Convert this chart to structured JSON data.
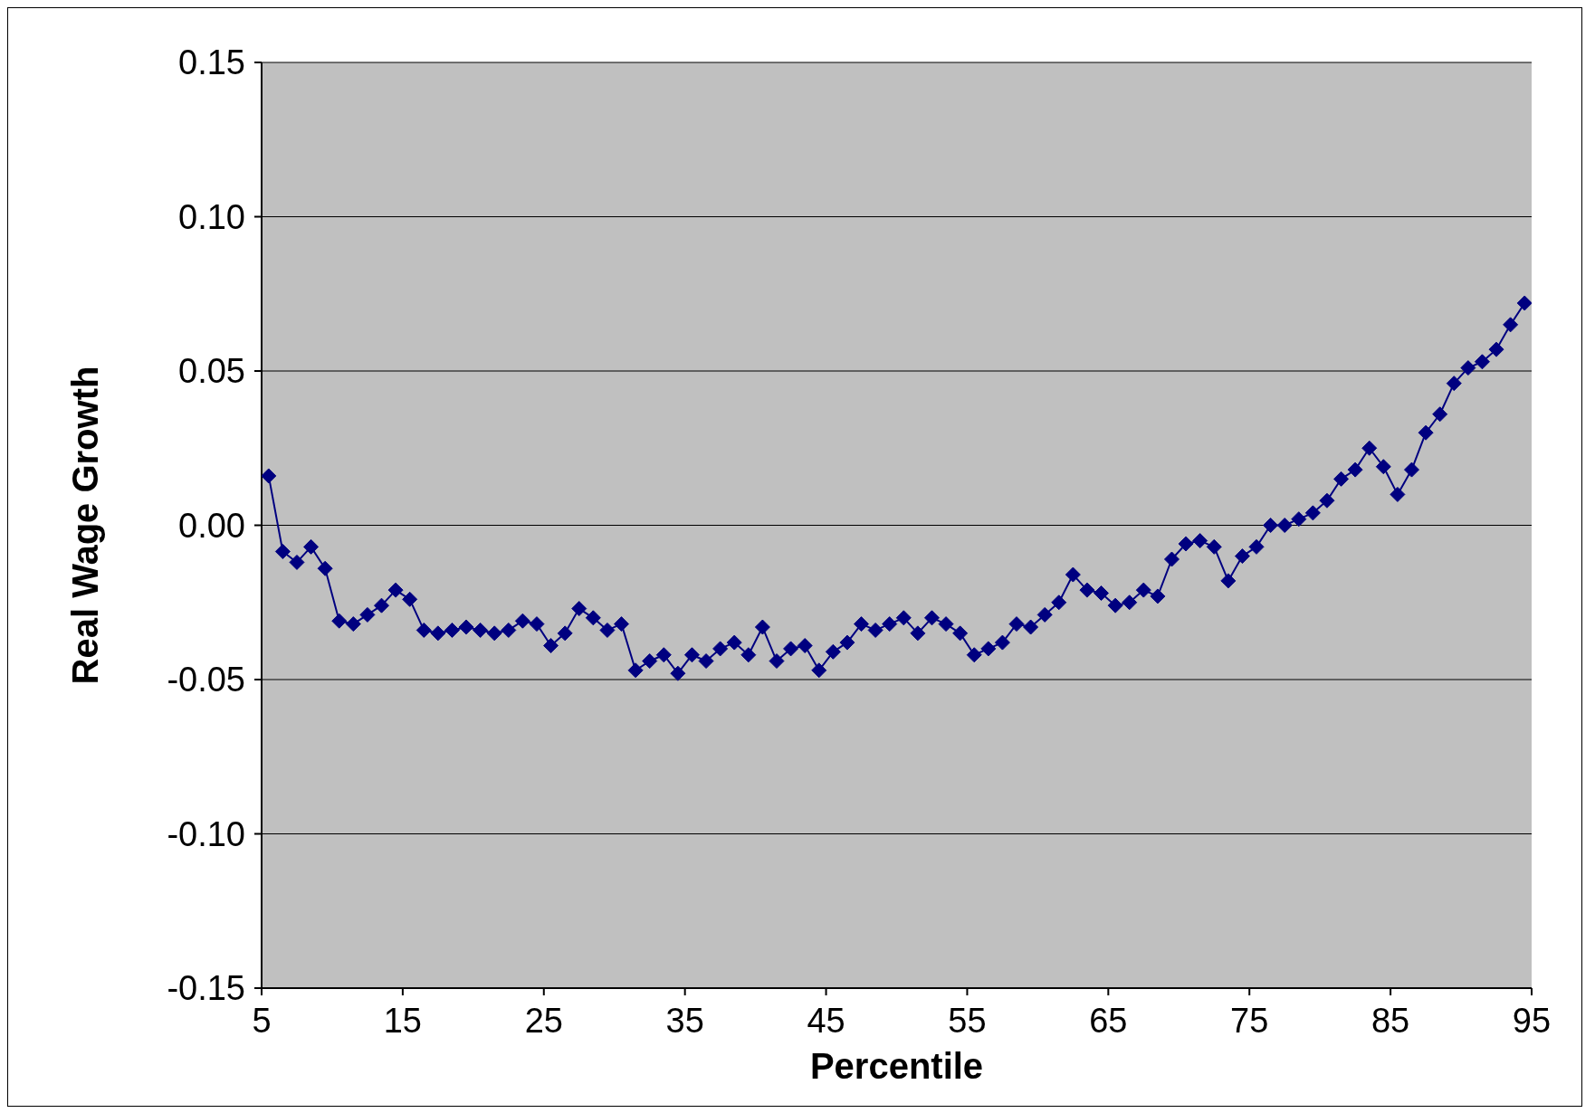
{
  "chart_data": {
    "type": "line",
    "xlabel": "Percentile",
    "ylabel": "Real Wage Growth",
    "x": [
      5.5,
      6.5,
      7.5,
      8.5,
      9.5,
      10.5,
      11.5,
      12.5,
      13.5,
      14.5,
      15.5,
      16.5,
      17.5,
      18.5,
      19.5,
      20.5,
      21.5,
      22.5,
      23.5,
      24.5,
      25.5,
      26.5,
      27.5,
      28.5,
      29.5,
      30.5,
      31.5,
      32.5,
      33.5,
      34.5,
      35.5,
      36.5,
      37.5,
      38.5,
      39.5,
      40.5,
      41.5,
      42.5,
      43.5,
      44.5,
      45.5,
      46.5,
      47.5,
      48.5,
      49.5,
      50.5,
      51.5,
      52.5,
      53.5,
      54.5,
      55.5,
      56.5,
      57.5,
      58.5,
      59.5,
      60.5,
      61.5,
      62.5,
      63.5,
      64.5,
      65.5,
      66.5,
      67.5,
      68.5,
      69.5,
      70.5,
      71.5,
      72.5,
      73.5,
      74.5,
      75.5,
      76.5,
      77.5,
      78.5,
      79.5,
      80.5,
      81.5,
      82.5,
      83.5,
      84.5,
      85.5,
      86.5,
      87.5,
      88.5,
      89.5,
      90.5,
      91.5,
      92.5,
      93.5,
      94.5
    ],
    "series": [
      {
        "color": "#000080",
        "values": [
          0.016,
          -0.0085,
          -0.012,
          -0.007,
          -0.014,
          -0.031,
          -0.032,
          -0.029,
          -0.026,
          -0.021,
          -0.024,
          -0.034,
          -0.035,
          -0.034,
          -0.033,
          -0.034,
          -0.035,
          -0.034,
          -0.031,
          -0.032,
          -0.039,
          -0.035,
          -0.027,
          -0.03,
          -0.034,
          -0.032,
          -0.047,
          -0.044,
          -0.042,
          -0.048,
          -0.042,
          -0.044,
          -0.04,
          -0.038,
          -0.042,
          -0.033,
          -0.044,
          -0.04,
          -0.039,
          -0.047,
          -0.041,
          -0.038,
          -0.032,
          -0.034,
          -0.032,
          -0.03,
          -0.035,
          -0.03,
          -0.032,
          -0.035,
          -0.042,
          -0.04,
          -0.038,
          -0.032,
          -0.033,
          -0.029,
          -0.025,
          -0.016,
          -0.021,
          -0.022,
          -0.026,
          -0.025,
          -0.021,
          -0.023,
          -0.011,
          -0.006,
          -0.005,
          -0.007,
          -0.018,
          -0.01,
          -0.007,
          0.0,
          0.0,
          0.002,
          0.004,
          0.008,
          0.015,
          0.018,
          0.025,
          0.019,
          0.01,
          0.018,
          0.03,
          0.036,
          0.046,
          0.051,
          0.053,
          0.057,
          0.065,
          0.072
        ]
      }
    ],
    "xlim": [
      5,
      95
    ],
    "xticks": [
      5,
      15,
      25,
      35,
      45,
      55,
      65,
      75,
      85,
      95
    ],
    "ylim": [
      -0.15,
      0.15
    ],
    "yticks": [
      {
        "value": -0.15,
        "label": "-0.15"
      },
      {
        "value": -0.1,
        "label": "-0.10"
      },
      {
        "value": -0.05,
        "label": "-0.05"
      },
      {
        "value": 0,
        "label": "0.00"
      },
      {
        "value": 0.05,
        "label": "0.05"
      },
      {
        "value": 0.1,
        "label": "0.10"
      },
      {
        "value": 0.15,
        "label": "0.15"
      }
    ],
    "grid": "y",
    "marker": "diamond",
    "line_style": "solid"
  }
}
